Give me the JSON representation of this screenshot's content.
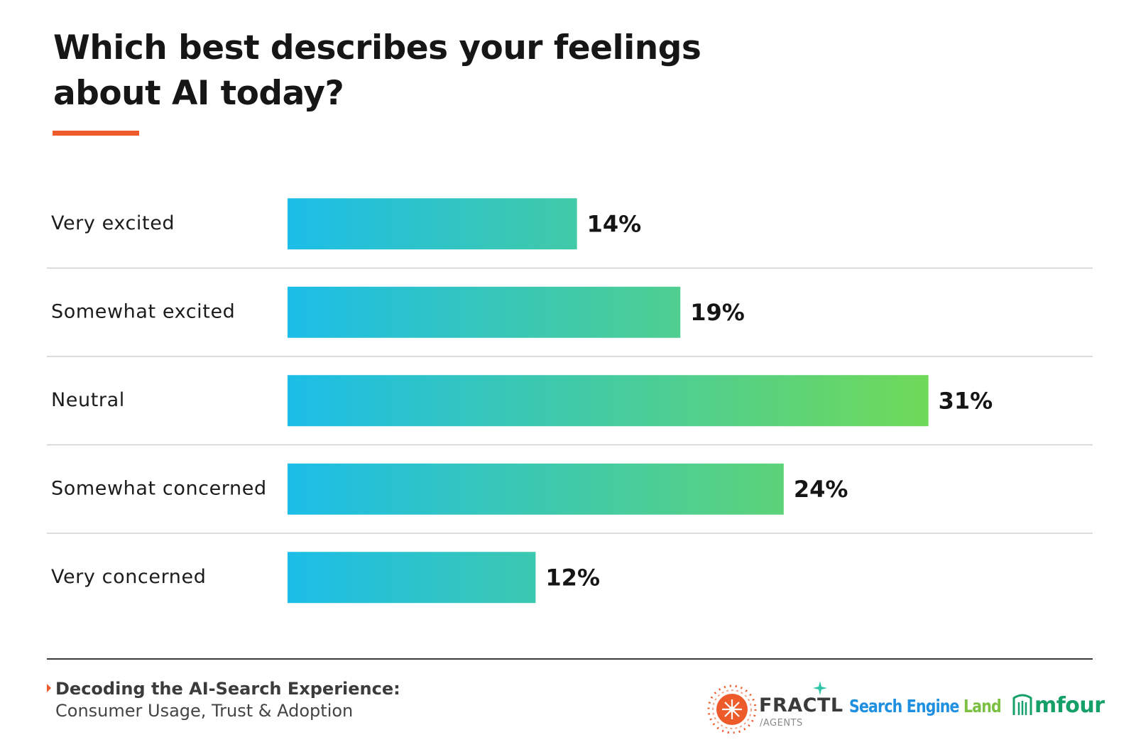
{
  "title": "Which best describes your feelings about AI today?",
  "chart_data": {
    "type": "bar",
    "orientation": "horizontal",
    "title": "Which best describes your feelings about AI today?",
    "categories": [
      "Very excited",
      "Somewhat excited",
      "Neutral",
      "Somewhat concerned",
      "Very concerned"
    ],
    "values": [
      14,
      19,
      31,
      24,
      12
    ],
    "value_labels": [
      "14%",
      "19%",
      "31%",
      "24%",
      "12%"
    ],
    "xlim": [
      0,
      34
    ],
    "unit": "%",
    "grid": false,
    "legend": "none"
  },
  "colors": {
    "accent": "#ef5a2d",
    "bar_gradient_start": "#1cbde8",
    "bar_gradient_end": "#77dc4a",
    "separator": "#d0d0d0"
  },
  "footer": {
    "source_title": "Decoding the AI-Search Experience:",
    "source_subtitle": "Consumer Usage, Trust & Adoption",
    "logos": {
      "fractl_name": "FRACTL",
      "fractl_sub": "/AGENTS",
      "sel_part1": "Search Engine",
      "sel_part2": "Land",
      "mfour_name": "mfour"
    }
  }
}
